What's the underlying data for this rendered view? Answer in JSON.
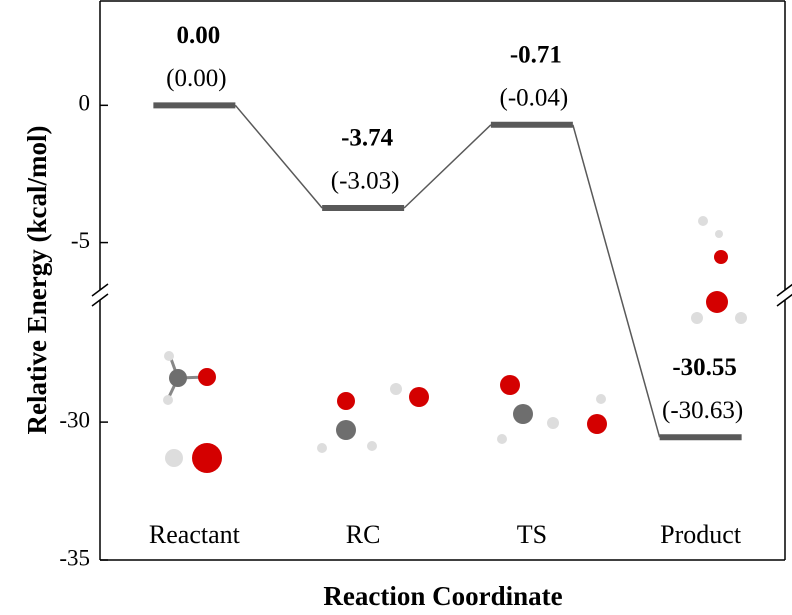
{
  "chart_data": {
    "type": "energy",
    "y_label": "Relative Energy (kcal/mol)",
    "x_label": "Reaction Coordinate",
    "categories": [
      "Reactant",
      "RC",
      "TS",
      "Product"
    ],
    "values": [
      0,
      -3.74,
      -0.71,
      -30.55
    ],
    "value_labels": [
      "0.00",
      "-3.74",
      "-0.71",
      "-30.55"
    ],
    "alt_values": [
      0,
      -3.03,
      -0.04,
      -30.63
    ],
    "alt_value_labels": [
      "(0.00)",
      "(-3.03)",
      "(-0.04)",
      "(-30.63)"
    ],
    "color": "#595959",
    "segments": [
      {
        "ylim": [
          -6.8,
          3.8
        ],
        "yticks": [
          -5,
          0
        ]
      },
      {
        "ylim": [
          -35,
          -25.5
        ],
        "yticks": [
          -35,
          -30
        ]
      }
    ]
  }
}
